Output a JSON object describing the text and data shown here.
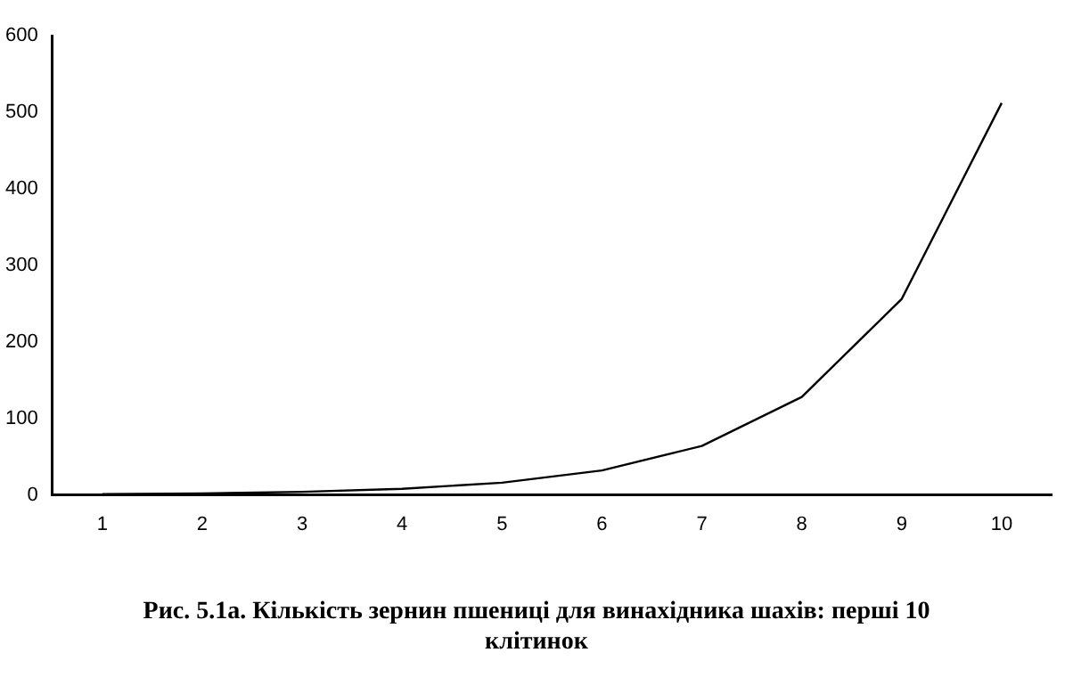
{
  "chart_data": {
    "type": "line",
    "title": "Рис. 5.1а. Кількість зернин пшениці для винахідника шахів: перші 10 клітинок",
    "categories": [
      "1",
      "2",
      "3",
      "4",
      "5",
      "6",
      "7",
      "8",
      "9",
      "10"
    ],
    "series": [
      {
        "color": "#000000",
        "values": [
          1,
          2,
          4,
          8,
          16,
          32,
          64,
          128,
          256,
          512
        ]
      }
    ],
    "ylim": [
      0,
      600
    ],
    "yticks": [
      0,
      100,
      200,
      300,
      400,
      500,
      600
    ],
    "grid": false,
    "legend": false,
    "marker": "none",
    "line_style": "solid"
  }
}
